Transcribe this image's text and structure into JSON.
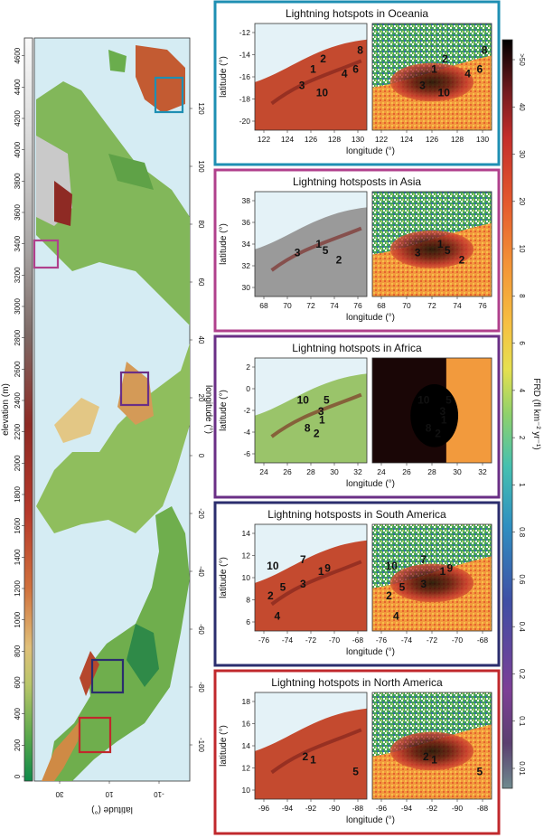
{
  "colors": {
    "ocean": "#1e8fb3",
    "asia": "#b0408c",
    "africa": "#6a2f86",
    "south_america": "#2b2d6e",
    "north_america": "#c0282c",
    "map_sea": "#d5ecf3",
    "panel_sea": "#e4f2f7"
  },
  "elevation_bar": {
    "label": "elevation (m)",
    "ticks": [
      "0",
      "200",
      "400",
      "600",
      "800",
      "1000",
      "1200",
      "1400",
      "1600",
      "1800",
      "2000",
      "2200",
      "2400",
      "2600",
      "2800",
      "3000",
      "3200",
      "3400",
      "3600",
      "3800",
      "4000",
      "4200",
      "4400",
      "4600"
    ]
  },
  "world_map": {
    "longitude_label": "longitude (°)",
    "latitude_label": "latitude (°)",
    "lon_ticks": [
      "-100",
      "-80",
      "-60",
      "-40",
      "-20",
      "0",
      "20",
      "40",
      "60",
      "80",
      "100",
      "120"
    ],
    "lat_ticks": [
      "30",
      "10",
      "-10"
    ]
  },
  "frd_bar": {
    "label": "FRD (fl km⁻² yr⁻¹)",
    "ticks": [
      "0.01",
      "0.1",
      "0.2",
      "0.4",
      "0.6",
      "0.8",
      "1",
      "2",
      "4",
      "6",
      "8",
      "10",
      "20",
      "30",
      "40",
      ">50"
    ]
  },
  "panels": [
    {
      "key": "oceania",
      "title": "Lightning hotspots in Oceania",
      "ylabel": "latitude (°)",
      "xlabel": "longitude (°)",
      "xticks": [
        "122",
        "124",
        "126",
        "128",
        "130"
      ],
      "yticks": [
        "-12",
        "-14",
        "-16",
        "-18",
        "-20"
      ],
      "hotspots": [
        {
          "n": "1",
          "x": 0.52,
          "y": 0.43
        },
        {
          "n": "2",
          "x": 0.61,
          "y": 0.33
        },
        {
          "n": "3",
          "x": 0.42,
          "y": 0.58
        },
        {
          "n": "4",
          "x": 0.8,
          "y": 0.47
        },
        {
          "n": "6",
          "x": 0.9,
          "y": 0.43
        },
        {
          "n": "8",
          "x": 0.94,
          "y": 0.25
        },
        {
          "n": "10",
          "x": 0.6,
          "y": 0.65
        }
      ]
    },
    {
      "key": "asia",
      "title": "Lightning hotsposts in Asia",
      "ylabel": "latitude (°)",
      "xlabel": "longitude (°)",
      "xticks": [
        "68",
        "70",
        "72",
        "74",
        "76"
      ],
      "yticks": [
        "38",
        "36",
        "34",
        "32",
        "30"
      ],
      "hotspots": [
        {
          "n": "1",
          "x": 0.57,
          "y": 0.5
        },
        {
          "n": "2",
          "x": 0.75,
          "y": 0.65
        },
        {
          "n": "3",
          "x": 0.38,
          "y": 0.58
        },
        {
          "n": "5",
          "x": 0.63,
          "y": 0.56
        }
      ]
    },
    {
      "key": "africa",
      "title": "Lightning hotspots in Africa",
      "ylabel": "latitude (°)",
      "xlabel": "longitude (°)",
      "xticks": [
        "24",
        "26",
        "28",
        "30",
        "32"
      ],
      "yticks": [
        "2",
        "0",
        "-2",
        "-4",
        "-6"
      ],
      "hotspots": [
        {
          "n": "10",
          "x": 0.43,
          "y": 0.4
        },
        {
          "n": "5",
          "x": 0.64,
          "y": 0.4
        },
        {
          "n": "3",
          "x": 0.59,
          "y": 0.51
        },
        {
          "n": "1",
          "x": 0.6,
          "y": 0.59
        },
        {
          "n": "8",
          "x": 0.47,
          "y": 0.67
        },
        {
          "n": "2",
          "x": 0.55,
          "y": 0.72
        }
      ]
    },
    {
      "key": "south_america",
      "title": "Lightning hotsposts in South America",
      "ylabel": "latitude (°)",
      "xlabel": "longitude (°)",
      "xticks": [
        "-76",
        "-74",
        "-72",
        "-70",
        "-68"
      ],
      "yticks": [
        "14",
        "12",
        "10",
        "8",
        "6"
      ],
      "hotspots": [
        {
          "n": "10",
          "x": 0.16,
          "y": 0.39
        },
        {
          "n": "7",
          "x": 0.43,
          "y": 0.33
        },
        {
          "n": "1",
          "x": 0.59,
          "y": 0.44
        },
        {
          "n": "9",
          "x": 0.65,
          "y": 0.41
        },
        {
          "n": "5",
          "x": 0.25,
          "y": 0.59
        },
        {
          "n": "3",
          "x": 0.43,
          "y": 0.56
        },
        {
          "n": "2",
          "x": 0.14,
          "y": 0.67
        },
        {
          "n": "4",
          "x": 0.2,
          "y": 0.86
        }
      ]
    },
    {
      "key": "north_america",
      "title": "Lightning hotspots in North America",
      "ylabel": "latitude (°)",
      "xlabel": "longitude (°)",
      "xticks": [
        "-96",
        "-94",
        "-92",
        "-90",
        "-88"
      ],
      "yticks": [
        "18",
        "16",
        "14",
        "12",
        "10"
      ],
      "hotspots": [
        {
          "n": "2",
          "x": 0.45,
          "y": 0.6
        },
        {
          "n": "1",
          "x": 0.52,
          "y": 0.63
        },
        {
          "n": "5",
          "x": 0.9,
          "y": 0.74
        }
      ]
    }
  ],
  "chart_data": {
    "type": "heatmap",
    "title": "",
    "panels": [
      {
        "region": "Oceania",
        "lon_range": [
          121,
          131
        ],
        "lat_range": [
          -21,
          -11
        ],
        "hotspot_ranks": [
          1,
          2,
          3,
          4,
          6,
          8,
          10
        ]
      },
      {
        "region": "Asia",
        "lon_range": [
          66,
          78
        ],
        "lat_range": [
          29,
          39
        ],
        "hotspot_ranks": [
          1,
          2,
          3,
          5
        ]
      },
      {
        "region": "Africa",
        "lon_range": [
          23,
          33
        ],
        "lat_range": [
          -7,
          3
        ],
        "hotspot_ranks": [
          1,
          2,
          3,
          5,
          8,
          10
        ]
      },
      {
        "region": "South America",
        "lon_range": [
          -77,
          -67
        ],
        "lat_range": [
          5,
          15
        ],
        "hotspot_ranks": [
          1,
          2,
          3,
          4,
          5,
          7,
          9,
          10
        ]
      },
      {
        "region": "North America",
        "lon_range": [
          -97,
          -87
        ],
        "lat_range": [
          9,
          19
        ],
        "hotspot_ranks": [
          1,
          2,
          5
        ]
      }
    ],
    "frd_scale": [
      0.01,
      0.1,
      0.2,
      0.4,
      0.6,
      0.8,
      1,
      2,
      4,
      6,
      8,
      10,
      20,
      30,
      40,
      50
    ],
    "elevation_range": [
      0,
      4600
    ]
  }
}
